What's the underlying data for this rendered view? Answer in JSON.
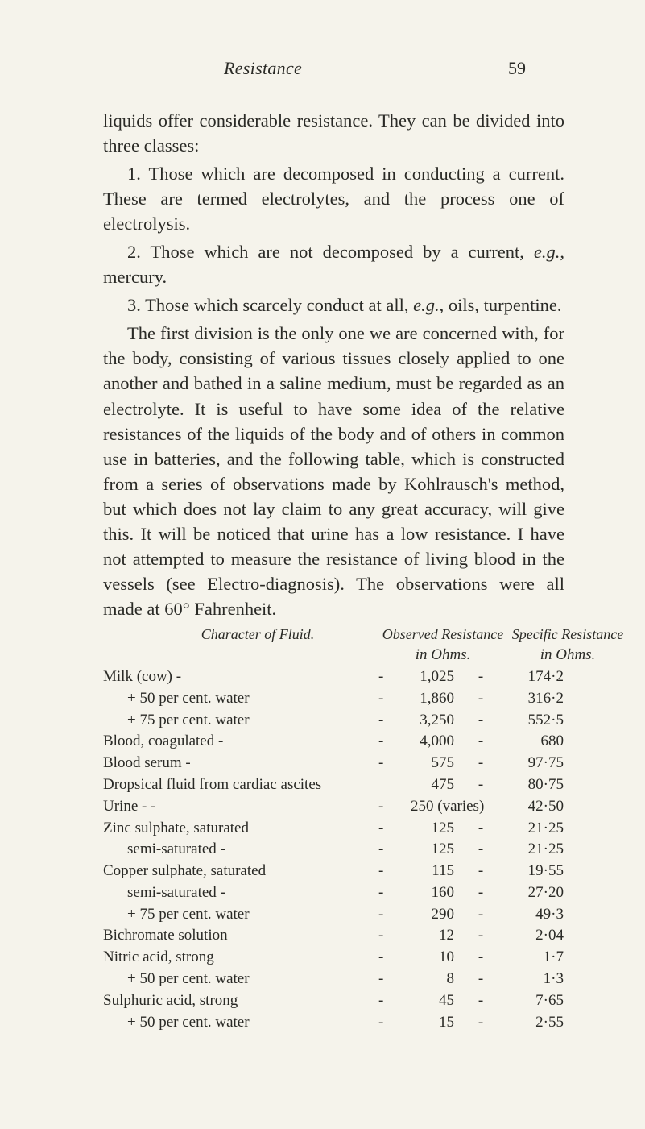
{
  "header": {
    "title": "Resistance",
    "page": "59"
  },
  "para1": "liquids offer considerable resistance. They can be divided into three classes:",
  "para2_pre": "1. Those which are decomposed in conducting a current. These are termed electrolytes, and the process one of electrolysis.",
  "para3_a": "2. Those which are not decomposed by a current, ",
  "para3_eg": "e.g.",
  "para3_b": ", mercury.",
  "para4_a": "3. Those which scarcely conduct at all, ",
  "para4_eg": "e.g.",
  "para4_b": ", oils, turpentine.",
  "para5": "The first division is the only one we are concerned with, for the body, consisting of various tissues closely applied to one another and bathed in a saline medium, must be regarded as an electrolyte. It is useful to have some idea of the relative resistances of the liquids of the body and of others in common use in batteries, and the following table, which is constructed from a series of observations made by Kohlrausch's method, but which does not lay claim to any great accuracy, will give this. It will be noticed that urine has a low resistance. I have not attempted to measure the resistance of living blood in the vessels (see Electro-diagnosis). The observations were all made at 60° Fahrenheit.",
  "table": {
    "title_label": "Character of Fluid.",
    "col1_header": "Observed Resistance",
    "col1_sub": "in Ohms.",
    "col2_header": "Specific Resistance",
    "col2_sub": "in Ohms.",
    "rows": [
      {
        "label": "Milk (cow) -",
        "sep": "-",
        "v1": "1,025",
        "mid": "-",
        "v2": "174·2",
        "indent": false,
        "sep0": "-   -"
      },
      {
        "label": "+ 50 per cent. water",
        "sep": "-",
        "v1": "1,860",
        "mid": "-",
        "v2": "316·2",
        "indent": true,
        "sep0": "-"
      },
      {
        "label": "+ 75 per cent. water",
        "sep": "-",
        "v1": "3,250",
        "mid": "-",
        "v2": "552·5",
        "indent": true,
        "sep0": "-"
      },
      {
        "label": "Blood, coagulated -",
        "sep": "-",
        "v1": "4,000",
        "mid": "-",
        "v2": "680",
        "indent": false,
        "sep0": "-"
      },
      {
        "label": "Blood serum      -",
        "sep": "-",
        "v1": "575",
        "mid": "-",
        "v2": "97·75",
        "indent": false,
        "sep0": "-   -"
      },
      {
        "label": "Dropsical fluid from cardiac ascites",
        "sep": "",
        "v1": "475",
        "mid": "-",
        "v2": "80·75",
        "indent": false,
        "sep0": ""
      },
      {
        "label": "Urine    -      -",
        "sep": "-",
        "v1": "250 (varies)",
        "mid": "",
        "v2": "42·50",
        "indent": false,
        "sep0": "-   -",
        "wide": true
      },
      {
        "label": "Zinc sulphate, saturated",
        "sep": "-",
        "v1": "125",
        "mid": "-",
        "v2": "21·25",
        "indent": false,
        "sep0": "-"
      },
      {
        "label": "semi-saturated -",
        "sep": "-",
        "v1": "125",
        "mid": "-",
        "v2": "21·25",
        "indent": true,
        "sep0": "-"
      },
      {
        "label": "Copper sulphate, saturated",
        "sep": "-",
        "v1": "115",
        "mid": "-",
        "v2": "19·55",
        "indent": false,
        "sep0": ""
      },
      {
        "label": "semi-saturated -",
        "sep": "-",
        "v1": "160",
        "mid": "-",
        "v2": "27·20",
        "indent": true,
        "sep0": "-"
      },
      {
        "label": "+ 75 per cent. water",
        "sep": "-",
        "v1": "290",
        "mid": "-",
        "v2": "49·3",
        "indent": true,
        "sep0": "-"
      },
      {
        "label": "Bichromate solution",
        "sep": "-",
        "v1": "12",
        "mid": "-",
        "v2": "2·04",
        "indent": false,
        "sep0": "-"
      },
      {
        "label": "Nitric acid, strong",
        "sep": "-",
        "v1": "10",
        "mid": "-",
        "v2": "1·7",
        "indent": false,
        "sep0": "-"
      },
      {
        "label": "+ 50 per cent. water",
        "sep": "-",
        "v1": "8",
        "mid": "-",
        "v2": "1·3",
        "indent": true,
        "sep0": "-"
      },
      {
        "label": "Sulphuric acid, strong",
        "sep": "-",
        "v1": "45",
        "mid": "-",
        "v2": "7·65",
        "indent": false,
        "sep0": "-"
      },
      {
        "label": "+ 50 per cent. water",
        "sep": "-",
        "v1": "15",
        "mid": "-",
        "v2": "2·55",
        "indent": true,
        "sep0": "-"
      }
    ]
  }
}
